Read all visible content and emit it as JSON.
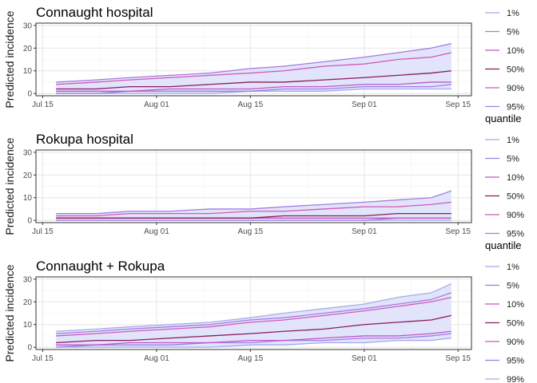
{
  "chart_data": {
    "type": "line",
    "x_axis": {
      "ticks": [
        "Jul 15",
        "Aug 01",
        "Aug 15",
        "Sep 01",
        "Sep 15"
      ],
      "range": [
        "2014-07-14",
        "2014-09-17"
      ]
    },
    "y_axis": {
      "ticks": [
        0,
        10,
        20,
        30
      ],
      "range": [
        -1,
        31
      ]
    },
    "grid": true,
    "legend_placement": "right",
    "colors": {
      "1%": "#a3a7ee",
      "5%": "#9b7fe6",
      "10%": "#c056c8",
      "50%": "#8a1a5e",
      "90%": "#d05ab5",
      "95%": "#a47be3",
      "99%": "#a8ade6"
    },
    "band_fill": "#dfe1fb",
    "panels": [
      {
        "title": "Connaught hospital",
        "ylabel": "Predicted incidence",
        "legend_title": "",
        "quantiles": [
          "1%",
          "5%",
          "10%",
          "50%",
          "90%",
          "95%"
        ],
        "band": [
          "1%",
          "95%"
        ],
        "dates": [
          "2014-07-17",
          "2014-07-23",
          "2014-07-28",
          "2014-08-03",
          "2014-08-09",
          "2014-08-15",
          "2014-08-20",
          "2014-08-26",
          "2014-09-01",
          "2014-09-06",
          "2014-09-11",
          "2014-09-14"
        ],
        "series": [
          {
            "name": "1%",
            "values": [
              0,
              0,
              0,
              0,
              0,
              1,
              1,
              1,
              2,
              2,
              2,
              2
            ]
          },
          {
            "name": "5%",
            "values": [
              0,
              0,
              1,
              1,
              1,
              1,
              2,
              2,
              3,
              3,
              3,
              4
            ]
          },
          {
            "name": "10%",
            "values": [
              1,
              1,
              1,
              2,
              2,
              2,
              3,
              3,
              4,
              4,
              5,
              5
            ]
          },
          {
            "name": "50%",
            "values": [
              2,
              2,
              3,
              3,
              4,
              5,
              5,
              6,
              7,
              8,
              9,
              10
            ]
          },
          {
            "name": "90%",
            "values": [
              4,
              5,
              6,
              7,
              8,
              9,
              10,
              12,
              13,
              15,
              16,
              18
            ]
          },
          {
            "name": "95%",
            "values": [
              5,
              6,
              7,
              8,
              9,
              11,
              12,
              14,
              16,
              18,
              20,
              22
            ]
          }
        ]
      },
      {
        "title": "Rokupa hospital",
        "ylabel": "Predicted incidence",
        "legend_title": "quantile",
        "quantiles": [
          "1%",
          "5%",
          "10%",
          "50%",
          "90%",
          "95%"
        ],
        "band": [
          "1%",
          "95%"
        ],
        "dates": [
          "2014-07-17",
          "2014-07-23",
          "2014-07-28",
          "2014-08-03",
          "2014-08-09",
          "2014-08-15",
          "2014-08-20",
          "2014-08-26",
          "2014-09-01",
          "2014-09-06",
          "2014-09-11",
          "2014-09-14"
        ],
        "series": [
          {
            "name": "1%",
            "values": [
              0,
              0,
              0,
              0,
              0,
              0,
              0,
              0,
              0,
              0,
              0,
              0
            ]
          },
          {
            "name": "5%",
            "values": [
              0,
              0,
              0,
              0,
              0,
              0,
              0,
              0,
              0,
              1,
              1,
              1
            ]
          },
          {
            "name": "10%",
            "values": [
              1,
              1,
              1,
              1,
              1,
              1,
              1,
              1,
              1,
              1,
              1,
              1
            ]
          },
          {
            "name": "50%",
            "values": [
              1,
              1,
              1,
              1,
              1,
              1,
              2,
              2,
              2,
              3,
              3,
              3
            ]
          },
          {
            "name": "90%",
            "values": [
              2,
              2,
              3,
              3,
              3,
              4,
              4,
              5,
              6,
              6,
              7,
              8
            ]
          },
          {
            "name": "95%",
            "values": [
              3,
              3,
              4,
              4,
              5,
              5,
              6,
              7,
              8,
              9,
              10,
              13
            ]
          }
        ]
      },
      {
        "title": "Connaught + Rokupa",
        "ylabel": "Predicted incidence",
        "legend_title": "quantile",
        "quantiles": [
          "1%",
          "5%",
          "10%",
          "50%",
          "90%",
          "95%",
          "99%"
        ],
        "band": [
          "1%",
          "99%"
        ],
        "dates": [
          "2014-07-17",
          "2014-07-23",
          "2014-07-28",
          "2014-08-03",
          "2014-08-09",
          "2014-08-15",
          "2014-08-20",
          "2014-08-26",
          "2014-09-01",
          "2014-09-06",
          "2014-09-11",
          "2014-09-14"
        ],
        "series": [
          {
            "name": "1%",
            "values": [
              0,
              0,
              0,
              0,
              0,
              1,
              1,
              2,
              2,
              3,
              3,
              4
            ]
          },
          {
            "name": "5%",
            "values": [
              0,
              1,
              1,
              1,
              2,
              2,
              3,
              3,
              4,
              4,
              5,
              6
            ]
          },
          {
            "name": "10%",
            "values": [
              1,
              1,
              2,
              2,
              2,
              3,
              3,
              4,
              5,
              5,
              6,
              7
            ]
          },
          {
            "name": "50%",
            "values": [
              2,
              3,
              3,
              4,
              5,
              6,
              7,
              8,
              10,
              11,
              12,
              14
            ]
          },
          {
            "name": "90%",
            "values": [
              5,
              6,
              7,
              8,
              9,
              11,
              12,
              14,
              16,
              18,
              20,
              22
            ]
          },
          {
            "name": "95%",
            "values": [
              6,
              7,
              8,
              9,
              10,
              12,
              13,
              15,
              17,
              19,
              21,
              24
            ]
          },
          {
            "name": "99%",
            "values": [
              7,
              8,
              9,
              10,
              11,
              13,
              15,
              17,
              19,
              22,
              24,
              28
            ]
          }
        ]
      }
    ]
  }
}
